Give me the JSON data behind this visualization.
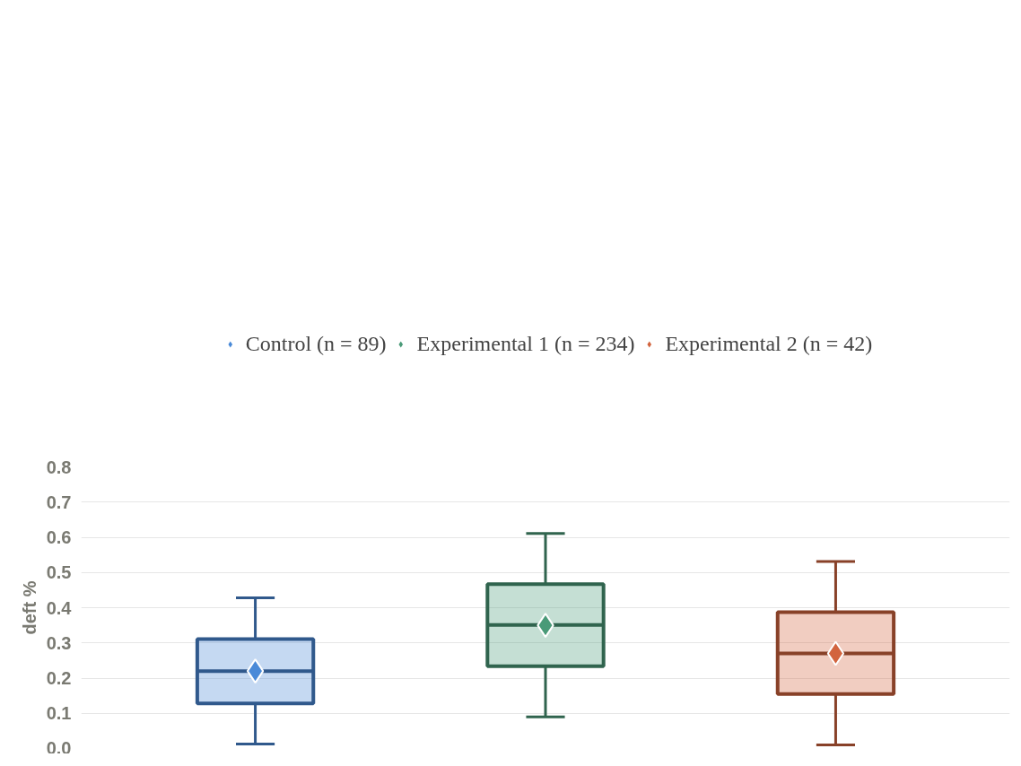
{
  "chart_data": {
    "type": "box",
    "ylabel": "deft %",
    "categories": [
      null,
      null,
      null
    ],
    "series": [
      {
        "name": "Control (n = 89)",
        "color": "#4a8ad8",
        "boxes": [
          {
            "low": 0.013,
            "q1": 0.128,
            "median": 0.22,
            "q3": 0.311,
            "high": 0.428,
            "mean": 0.22
          },
          null,
          null
        ]
      },
      {
        "name": "Experimental 1 (n = 234)",
        "color": "#4a9a78",
        "boxes": [
          null,
          {
            "low": 0.09,
            "q1": 0.234,
            "median": 0.351,
            "q3": 0.467,
            "high": 0.611,
            "mean": 0.35
          },
          null
        ]
      },
      {
        "name": "Experimental 2 (n = 42)",
        "color": "#d2643e",
        "boxes": [
          null,
          null,
          {
            "low": 0.01,
            "q1": 0.155,
            "median": 0.27,
            "q3": 0.387,
            "high": 0.531,
            "mean": 0.27
          }
        ]
      }
    ],
    "ylim": [
      0,
      0.8
    ],
    "yticks": [
      {
        "value": 0,
        "label": "0.0"
      },
      0.1,
      0.2,
      0.3,
      0.4,
      0.5,
      0.6,
      0.7,
      0.8
    ],
    "grid": "y",
    "legend": "top",
    "tick_labels": "y",
    "marker": "diamond"
  }
}
